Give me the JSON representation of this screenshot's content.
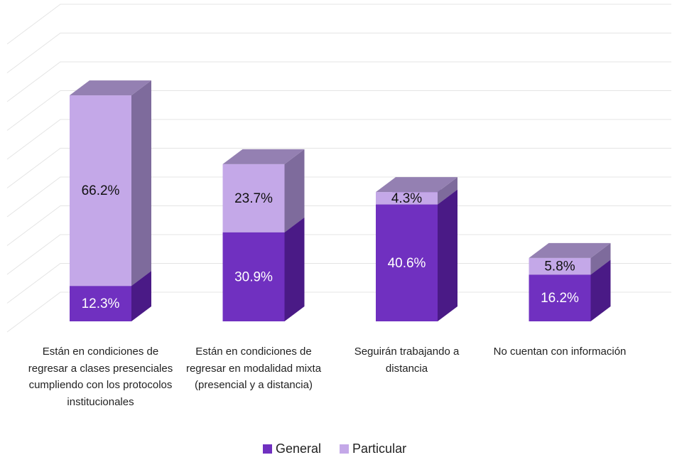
{
  "chart_data": {
    "type": "bar3d_stacked",
    "categories": [
      "Están en condiciones de regresar a clases presenciales cumpliendo con los protocolos institucionales",
      "Están en condiciones de regresar en modalidad mixta (presencial y a distancia)",
      "Seguirán trabajando a distancia",
      "No cuentan con información"
    ],
    "series": [
      {
        "name": "General",
        "color": "#7030c0",
        "values": [
          12.3,
          30.9,
          40.6,
          16.2
        ],
        "value_labels": [
          "12.3%",
          "30.9%",
          "40.6%",
          "16.2%"
        ]
      },
      {
        "name": "Particular",
        "color": "#c4a8e8",
        "values": [
          66.2,
          23.7,
          4.3,
          5.8
        ],
        "value_labels": [
          "66.2%",
          "23.7%",
          "4.3%",
          "5.8%"
        ]
      }
    ],
    "ylim": [
      0,
      100
    ],
    "yticks": [
      0,
      10,
      20,
      30,
      40,
      50,
      60,
      70,
      80,
      90,
      100
    ],
    "grid": true,
    "legend": "bottom"
  }
}
